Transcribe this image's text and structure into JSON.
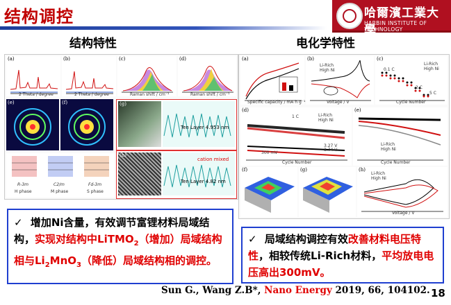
{
  "header": {
    "title": "结构调控",
    "logo_cn": "哈爾濱工業大學",
    "logo_en": "HARBIN INSTITUTE OF TECHNOLOGY"
  },
  "left": {
    "heading": "结构特性",
    "fig_labels": {
      "a": "(a)",
      "b": "(b)",
      "c": "(c)",
      "d": "(d)",
      "e": "(e)",
      "f": "(f)",
      "g": "(g)",
      "h": "(h)",
      "phase1": "R-3m",
      "phase1b": "H phase",
      "phase2": "C2/m",
      "phase2b": "M phase",
      "phase3": "Fd-3m",
      "phase3b": "S phase",
      "ten_layer1": "Ten Layer 4.953 nm",
      "ten_layer2": "Ten Layer 4.82 nm",
      "cation_mixed": "cation mixed",
      "a_x": "2 Theta / degree",
      "c_x": "Raman shift / cm⁻¹"
    },
    "bullet": {
      "check": "✓",
      "part1": "增加Ni含量，有效调节富锂材料局域结构，",
      "part2": "实现对结构中LiTMO",
      "part2_sub": "2",
      "part3": "（增加）局域结构相与Li",
      "part3_sub": "2",
      "part3b": "MnO",
      "part3_sub2": "3",
      "part4": "（降低）",
      "part5": "局域结构相的调控。"
    }
  },
  "right": {
    "heading": "电化学特性",
    "fig_labels": {
      "a": "(a)",
      "b": "(b)",
      "c": "(c)",
      "d": "(d)",
      "e": "(e)",
      "f": "(f)",
      "g": "(g)",
      "h": "(h)",
      "li_rich": "Li-Rich",
      "high_ni": "High Ni",
      "spec_cap": "Specific capacity / mA h g⁻¹",
      "voltage": "Voltage / V",
      "cycle": "Cycle Number",
      "c1": "1 C",
      "rate_01c": "0.1 C",
      "rate_2c": "2 C",
      "rate_5c": "5 C",
      "v_327": "3.27 V",
      "v_374": "3.74 V",
      "v_300mv": "300 mV"
    },
    "bullet": {
      "check": "✓",
      "part1": "局域结构调控有效",
      "part2": "改善材料电压特性",
      "part3": "，相较传统Li-Rich材料，",
      "part4": "平均放电电压高出300mV。"
    }
  },
  "citation": {
    "authors": "Sun G., Wang Z.B*, ",
    "journal": "Nano Energy",
    "rest": " 2019, 66, 104102."
  },
  "page_number": "18"
}
